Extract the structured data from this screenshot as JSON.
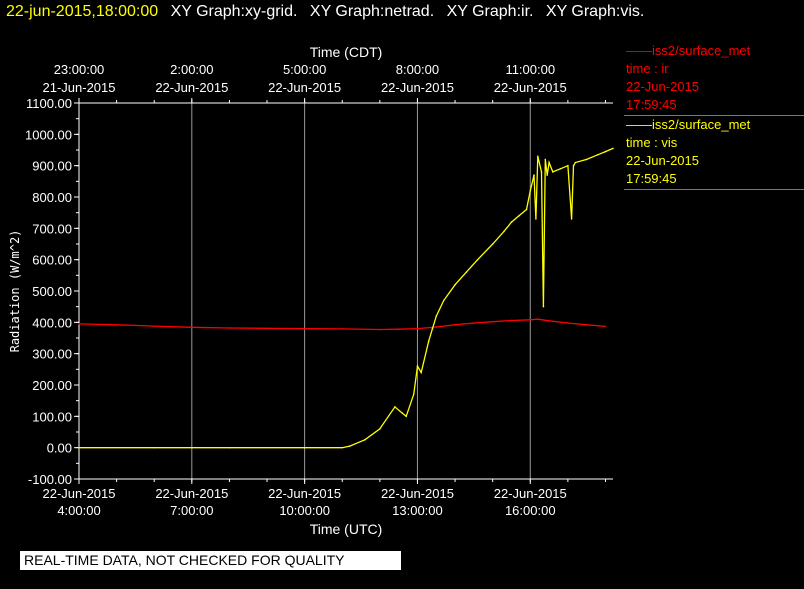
{
  "header": {
    "timestamp": "22-jun-2015,18:00:00",
    "titles": [
      "XY Graph:xy-grid.",
      "XY Graph:netrad.",
      "XY Graph:ir.",
      "XY Graph:vis."
    ]
  },
  "legend": [
    {
      "line": "——iss2/surface_met",
      "kind": "time : ir",
      "date": "22-Jun-2015",
      "time": "17:59:45",
      "color": "#ff0000"
    },
    {
      "line": "——iss2/surface_met",
      "kind": "time : vis",
      "date": "22-Jun-2015",
      "time": "17:59:45",
      "color": "#ffff00"
    }
  ],
  "disclaimer": "REAL-TIME DATA, NOT CHECKED FOR QUALITY",
  "chart_data": {
    "type": "line",
    "ylabel": "Radiation (W/m^2)",
    "xlabel": "Time (UTC)",
    "top_xlabel": "Time (CDT)",
    "ylim": [
      -100,
      1100
    ],
    "yticks": [
      "1100.00",
      "1000.00",
      "900.00",
      "800.00",
      "700.00",
      "600.00",
      "500.00",
      "400.00",
      "300.00",
      "200.00",
      "100.00",
      "0.00",
      "-100.00"
    ],
    "xlim_utc_hours": [
      4,
      18.2
    ],
    "bottom_ticks": [
      {
        "hour": 4,
        "date": "22-Jun-2015",
        "time": "4:00:00"
      },
      {
        "hour": 7,
        "date": "22-Jun-2015",
        "time": "7:00:00"
      },
      {
        "hour": 10,
        "date": "22-Jun-2015",
        "time": "10:00:00"
      },
      {
        "hour": 13,
        "date": "22-Jun-2015",
        "time": "13:00:00"
      },
      {
        "hour": 16,
        "date": "22-Jun-2015",
        "time": "16:00:00"
      }
    ],
    "top_ticks": [
      {
        "hour": 4,
        "time": "23:00:00",
        "date": "21-Jun-2015"
      },
      {
        "hour": 7,
        "time": "2:00:00",
        "date": "22-Jun-2015"
      },
      {
        "hour": 10,
        "time": "5:00:00",
        "date": "22-Jun-2015"
      },
      {
        "hour": 13,
        "time": "8:00:00",
        "date": "22-Jun-2015"
      },
      {
        "hour": 16,
        "time": "11:00:00",
        "date": "22-Jun-2015"
      }
    ],
    "grid": true,
    "series": [
      {
        "color": "#ff0000",
        "x": [
          4.0,
          5.0,
          6.0,
          7.0,
          8.0,
          9.0,
          10.0,
          11.0,
          12.0,
          12.5,
          13.0,
          13.5,
          14.0,
          14.5,
          15.0,
          15.5,
          16.0,
          16.2,
          16.5,
          17.0,
          17.5,
          18.0
        ],
        "y": [
          395,
          392,
          388,
          384,
          382,
          381,
          380,
          379,
          377,
          378,
          380,
          385,
          392,
          398,
          402,
          406,
          408,
          410,
          405,
          398,
          392,
          387
        ]
      },
      {
        "color": "#ffff00",
        "x": [
          4.0,
          6.0,
          8.0,
          10.0,
          11.0,
          11.2,
          11.6,
          12.0,
          12.4,
          12.6,
          12.7,
          12.9,
          13.0,
          13.1,
          13.3,
          13.4,
          13.5,
          13.7,
          14.0,
          14.3,
          14.6,
          15.0,
          15.3,
          15.5,
          15.7,
          15.9,
          16.0,
          16.1,
          16.15,
          16.2,
          16.3,
          16.35,
          16.4,
          16.45,
          16.5,
          16.6,
          16.8,
          17.0,
          17.1,
          17.15,
          17.2,
          17.5,
          17.8,
          18.0,
          18.2
        ],
        "y": [
          0,
          0,
          0,
          0,
          0,
          5,
          25,
          60,
          130,
          110,
          100,
          170,
          260,
          240,
          340,
          380,
          420,
          470,
          520,
          560,
          600,
          650,
          690,
          720,
          740,
          760,
          820,
          870,
          730,
          930,
          880,
          450,
          920,
          870,
          910,
          880,
          890,
          900,
          730,
          900,
          910,
          920,
          935,
          945,
          955
        ]
      }
    ]
  }
}
